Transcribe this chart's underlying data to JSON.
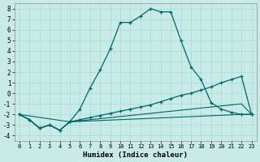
{
  "xlabel": "Humidex (Indice chaleur)",
  "background_color": "#c8ebe8",
  "grid_color": "#a8d8d4",
  "line_color": "#006666",
  "xlim": [
    -0.5,
    23.5
  ],
  "ylim": [
    -4.5,
    8.5
  ],
  "yticks": [
    -4,
    -3,
    -2,
    -1,
    0,
    1,
    2,
    3,
    4,
    5,
    6,
    7,
    8
  ],
  "xticks": [
    0,
    1,
    2,
    3,
    4,
    5,
    6,
    7,
    8,
    9,
    10,
    11,
    12,
    13,
    14,
    15,
    16,
    17,
    18,
    19,
    20,
    21,
    22,
    23
  ],
  "line1_x": [
    0,
    1,
    2,
    3,
    4,
    5,
    6,
    7,
    8,
    9,
    10,
    11,
    12,
    13,
    14,
    15,
    16,
    17,
    18,
    19,
    20,
    21,
    22,
    23
  ],
  "line1_y": [
    -2,
    -2.5,
    -3.3,
    -3.0,
    -3.5,
    -2.7,
    -1.5,
    0.5,
    2.2,
    4.2,
    6.7,
    6.7,
    7.3,
    8.0,
    7.7,
    7.7,
    5.0,
    2.5,
    1.3,
    -0.9,
    -1.5,
    -1.8,
    -2.0,
    -2.0
  ],
  "line2_x": [
    0,
    1,
    2,
    3,
    4,
    5,
    6,
    7,
    8,
    9,
    10,
    11,
    12,
    13,
    14,
    15,
    16,
    17,
    18,
    19,
    20,
    21,
    22,
    23
  ],
  "line2_y": [
    -2,
    -2.5,
    -3.3,
    -3.0,
    -3.5,
    -2.7,
    -2.5,
    -2.3,
    -2.1,
    -1.9,
    -1.7,
    -1.5,
    -1.3,
    -1.1,
    -0.8,
    -0.5,
    -0.2,
    0.0,
    0.3,
    0.6,
    1.0,
    1.3,
    1.6,
    -2.0
  ],
  "line3_x": [
    0,
    1,
    2,
    3,
    4,
    5,
    6,
    7,
    8,
    9,
    10,
    11,
    12,
    13,
    14,
    15,
    16,
    17,
    18,
    19,
    20,
    21,
    22,
    23
  ],
  "line3_y": [
    -2,
    -2.5,
    -3.3,
    -3.0,
    -3.5,
    -2.7,
    -2.6,
    -2.5,
    -2.4,
    -2.3,
    -2.2,
    -2.1,
    -2.0,
    -1.9,
    -1.8,
    -1.7,
    -1.6,
    -1.5,
    -1.4,
    -1.3,
    -1.2,
    -1.1,
    -1.0,
    -2.0
  ],
  "line4_x": [
    0,
    5,
    22,
    23
  ],
  "line4_y": [
    -2,
    -2.7,
    -2.0,
    -2.0
  ]
}
